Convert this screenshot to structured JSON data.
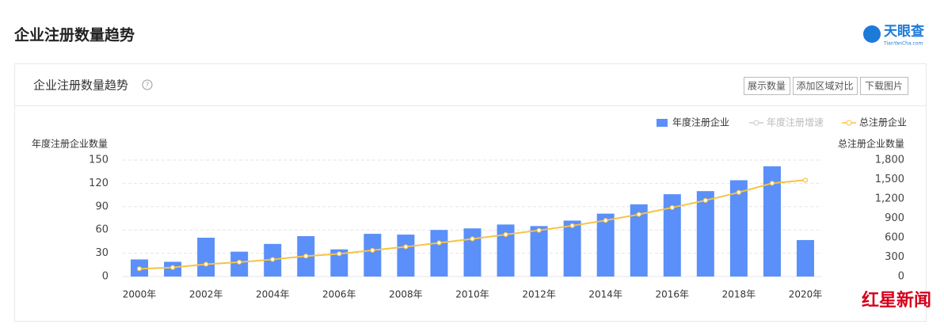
{
  "header": {
    "title": "企业注册数量趋势",
    "logo": "天眼查",
    "logo_sub": "TianYanCha.com"
  },
  "card": {
    "title": "企业注册数量趋势",
    "help": "?",
    "buttons": [
      "展示数量",
      "添加区域对比",
      "下载图片"
    ]
  },
  "watermark": "红星新闻",
  "chart_data": {
    "type": "bar",
    "ylabel": "年度注册企业数量",
    "y2label": "总注册企业数量",
    "categories": [
      "2000年",
      null,
      "2002年",
      null,
      "2004年",
      null,
      "2006年",
      null,
      "2008年",
      null,
      "2010年",
      null,
      "2012年",
      null,
      "2014年",
      null,
      "2016年",
      null,
      "2018年",
      null,
      "2020年"
    ],
    "series": [
      {
        "name": "年度注册企业",
        "type": "bar",
        "color": "#5b8ff9",
        "values": [
          22,
          19,
          50,
          32,
          42,
          52,
          35,
          55,
          54,
          60,
          62,
          67,
          65,
          72,
          81,
          93,
          106,
          110,
          124,
          142,
          47
        ]
      },
      {
        "name": "年度注册增速",
        "type": "line",
        "color": "#cccccc",
        "hidden": true
      },
      {
        "name": "总注册企业",
        "type": "line",
        "axis": "y2",
        "color": "#f6c344",
        "values": [
          120,
          140,
          190,
          222,
          264,
          316,
          351,
          406,
          460,
          520,
          582,
          649,
          714,
          786,
          867,
          960,
          1066,
          1176,
          1300,
          1442,
          1489
        ]
      }
    ],
    "ylim": [
      0,
      150
    ],
    "yticks": [
      0,
      30,
      60,
      90,
      120,
      150
    ],
    "y2lim": [
      0,
      1800
    ],
    "y2ticks": [
      0,
      300,
      600,
      900,
      {
        "value": 1200,
        "label": "1,200"
      },
      {
        "value": 1500,
        "label": "1,500"
      },
      {
        "value": 1800,
        "label": "1,800"
      }
    ],
    "grid": true,
    "legend": "top-right"
  }
}
